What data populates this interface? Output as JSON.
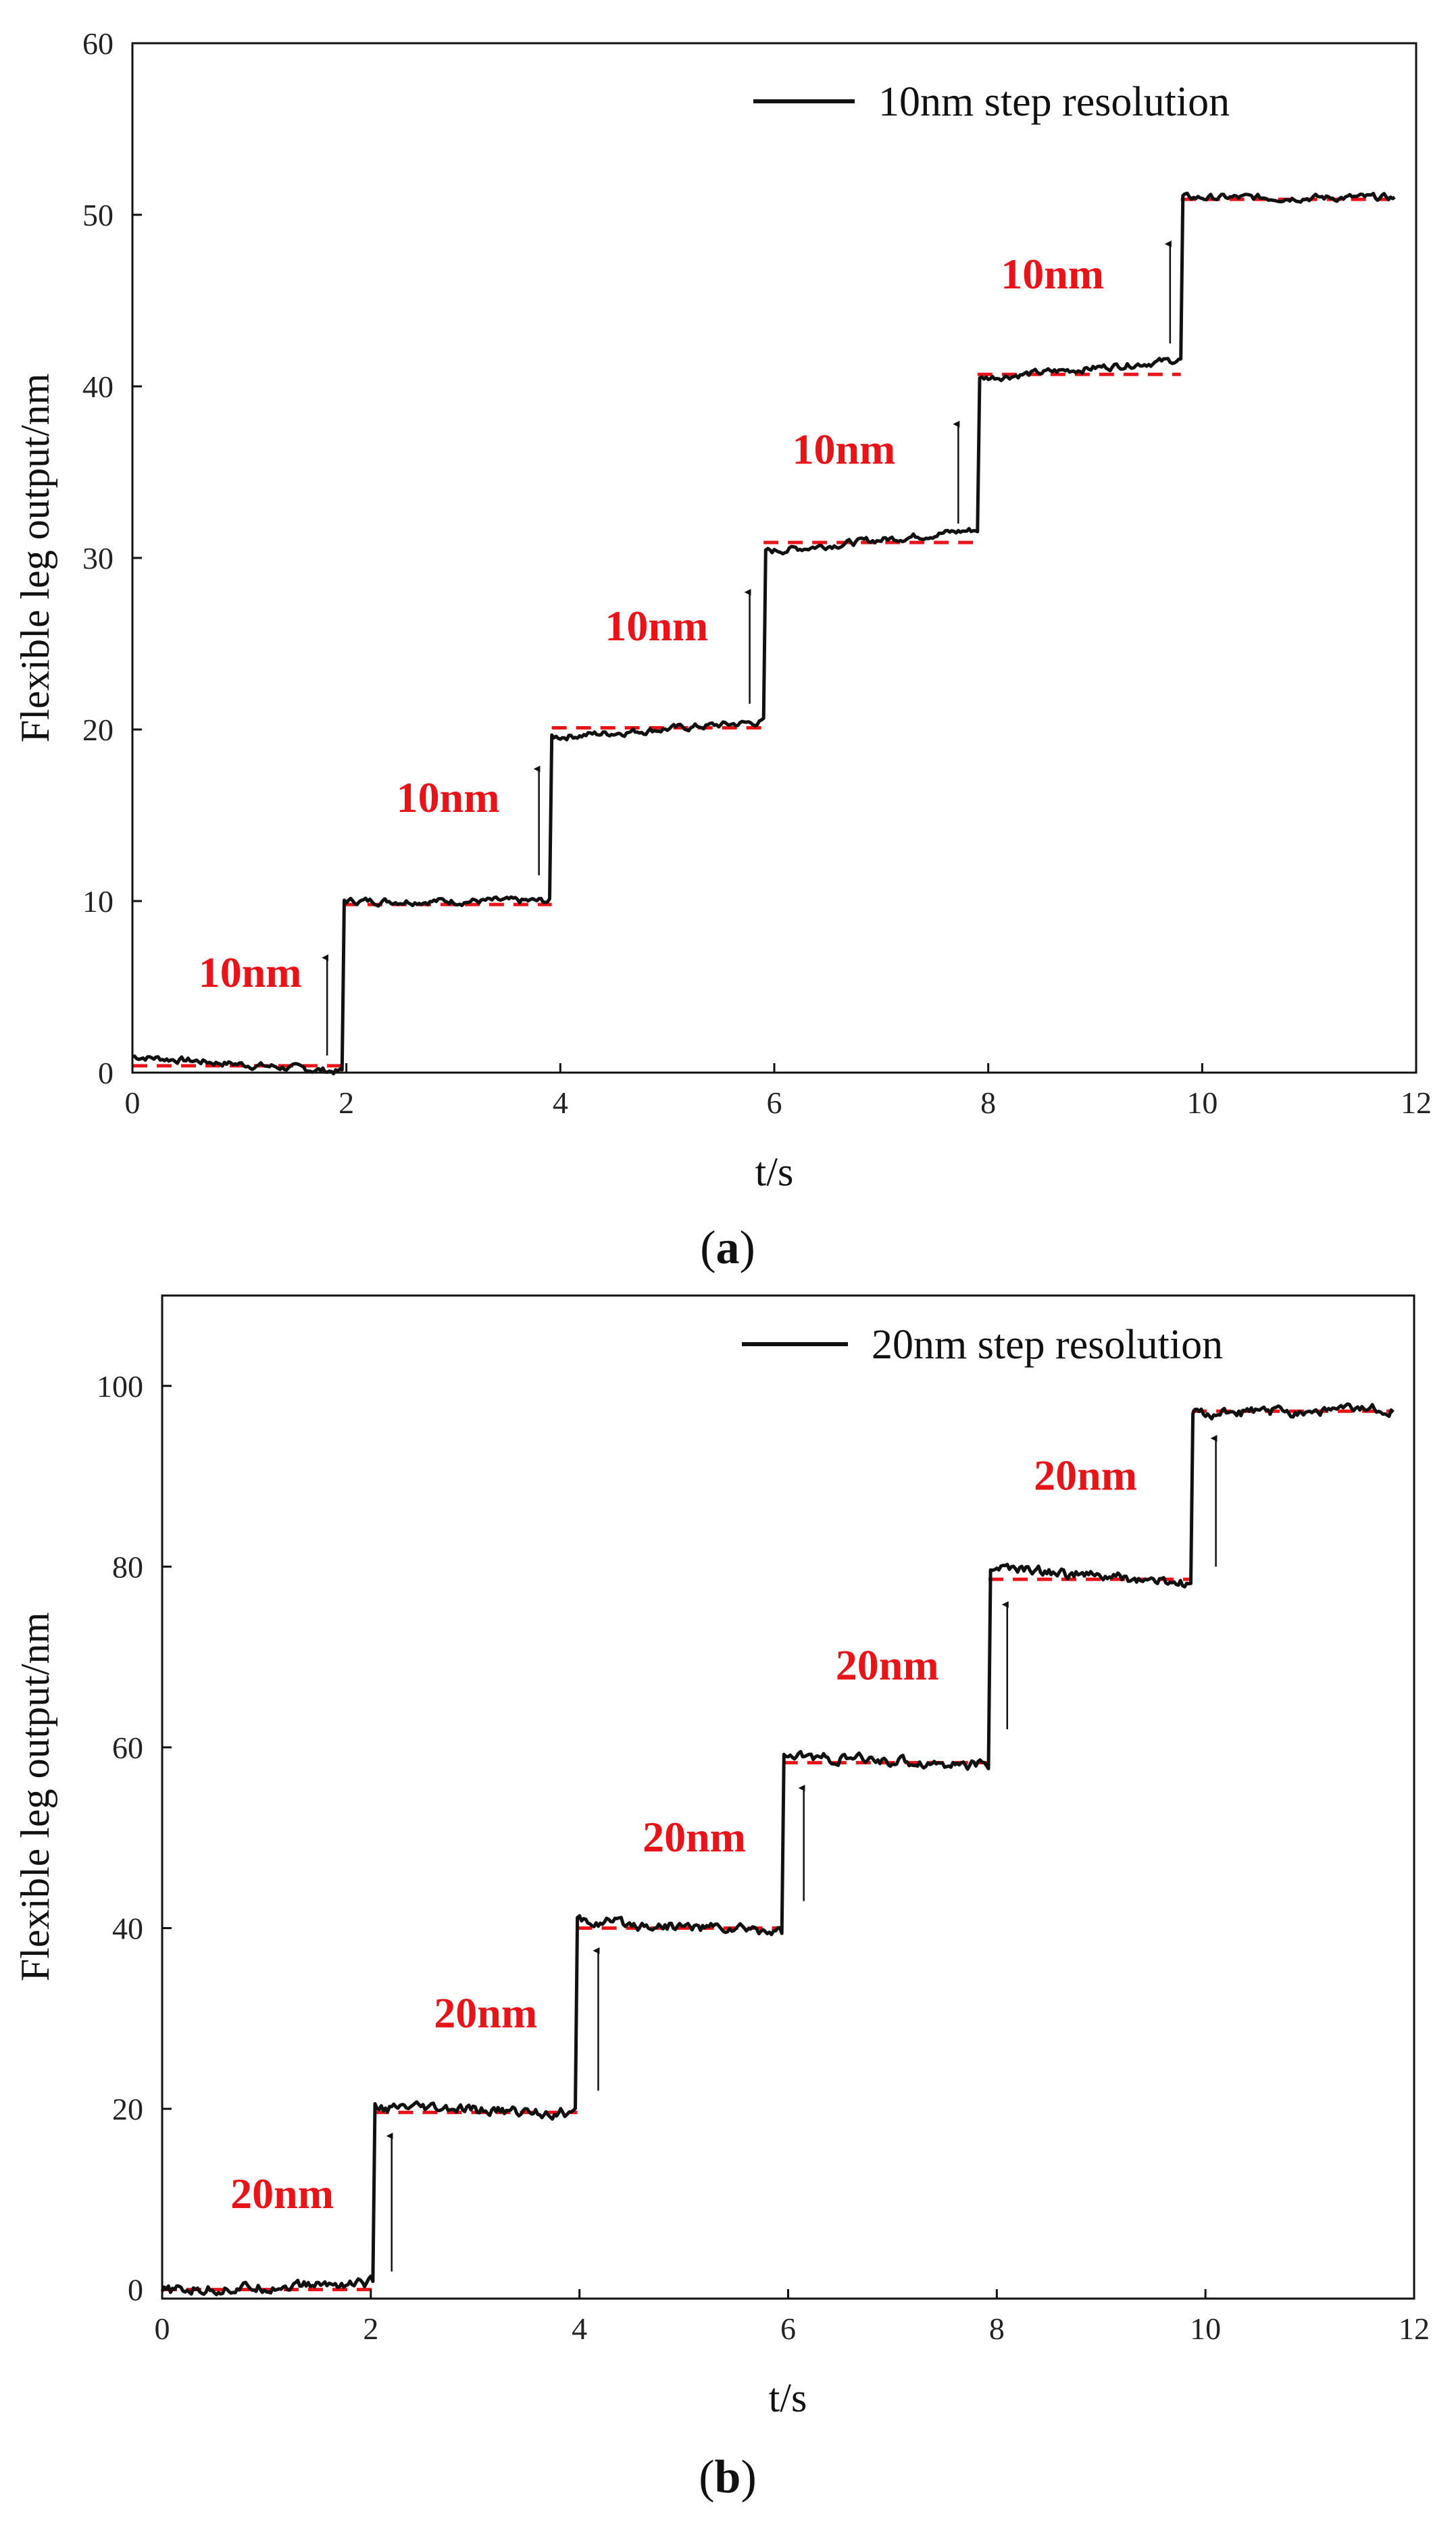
{
  "colors": {
    "signal": "#111111",
    "reference": "#e8141a",
    "annotation": "#e8141a",
    "arrow": "#111111"
  },
  "chart_data": [
    {
      "id": "a",
      "type": "line",
      "caption_letter": "a",
      "xlabel": "t/s",
      "ylabel": "Flexible leg output/nm",
      "xlim": [
        0,
        12
      ],
      "ylim": [
        0,
        60
      ],
      "xticks": [
        0,
        2,
        4,
        6,
        8,
        10,
        12
      ],
      "yticks": [
        0,
        10,
        20,
        30,
        40,
        50,
        60
      ],
      "legend": "10nm step resolution",
      "legend_position": "top-right",
      "step_size": 10,
      "step_times": [
        1.97,
        3.92,
        5.9,
        7.9,
        9.8
      ],
      "levels": [
        0.5,
        10,
        20,
        31,
        41,
        51
      ],
      "level_intervals": [
        [
          0,
          1.97
        ],
        [
          1.97,
          3.92
        ],
        [
          3.92,
          5.9
        ],
        [
          5.9,
          7.9
        ],
        [
          7.9,
          9.8
        ],
        [
          9.8,
          11.8
        ]
      ],
      "level_drift": [
        -0.9,
        0.0,
        0.9,
        1.3,
        1.1,
        0.0
      ],
      "noise_amplitude": 0.35,
      "reference_levels": [
        0.4,
        9.8,
        20.1,
        30.9,
        40.7,
        50.9
      ],
      "annotations": [
        {
          "text": "10nm",
          "x": 1.1,
          "y": 5.0,
          "arrow": [
            1.82,
            1.0,
            1.82,
            6.7
          ]
        },
        {
          "text": "10nm",
          "x": 2.95,
          "y": 15.2,
          "arrow": [
            3.8,
            11.5,
            3.8,
            17.7
          ]
        },
        {
          "text": "10nm",
          "x": 4.9,
          "y": 25.2,
          "arrow": [
            5.77,
            21.5,
            5.77,
            28.0
          ]
        },
        {
          "text": "10nm",
          "x": 6.65,
          "y": 35.5,
          "arrow": [
            7.72,
            32.0,
            7.72,
            37.8
          ]
        },
        {
          "text": "10nm",
          "x": 8.6,
          "y": 45.7,
          "arrow": [
            9.7,
            42.5,
            9.7,
            48.3
          ]
        }
      ]
    },
    {
      "id": "b",
      "type": "line",
      "caption_letter": "b",
      "xlabel": "t/s",
      "ylabel": "Flexible leg output/nm",
      "xlim": [
        0,
        12
      ],
      "ylim": [
        -1,
        110
      ],
      "xticks": [
        0,
        2,
        4,
        6,
        8,
        10,
        12
      ],
      "yticks": [
        0,
        20,
        40,
        60,
        80,
        100
      ],
      "legend": "20nm step resolution",
      "legend_position": "top-right",
      "step_size": 20,
      "step_times": [
        2.03,
        3.98,
        5.95,
        7.92,
        9.87
      ],
      "levels": [
        0.3,
        19.8,
        40.2,
        58.5,
        79.0,
        97.2
      ],
      "level_intervals": [
        [
          0,
          2.03
        ],
        [
          2.03,
          3.98
        ],
        [
          3.98,
          5.95
        ],
        [
          5.95,
          7.92
        ],
        [
          7.92,
          9.87
        ],
        [
          9.87,
          11.8
        ]
      ],
      "level_drift": [
        1.0,
        -0.5,
        -1.0,
        -1.0,
        -2.0,
        0.6
      ],
      "noise_amplitude": 0.5,
      "reference_levels": [
        0,
        19.6,
        40.0,
        58.3,
        78.6,
        97.2
      ],
      "annotations": [
        {
          "text": "20nm",
          "x": 1.15,
          "y": 9.0,
          "arrow": [
            2.2,
            2.0,
            2.2,
            17.0
          ]
        },
        {
          "text": "20nm",
          "x": 3.1,
          "y": 29.0,
          "arrow": [
            4.18,
            22.0,
            4.18,
            37.5
          ]
        },
        {
          "text": "20nm",
          "x": 5.1,
          "y": 48.5,
          "arrow": [
            6.15,
            43.0,
            6.15,
            55.5
          ]
        },
        {
          "text": "20nm",
          "x": 6.95,
          "y": 67.5,
          "arrow": [
            8.1,
            62.0,
            8.1,
            75.8
          ]
        },
        {
          "text": "20nm",
          "x": 8.85,
          "y": 88.5,
          "arrow": [
            10.1,
            80.0,
            10.1,
            94.2
          ]
        }
      ]
    }
  ]
}
